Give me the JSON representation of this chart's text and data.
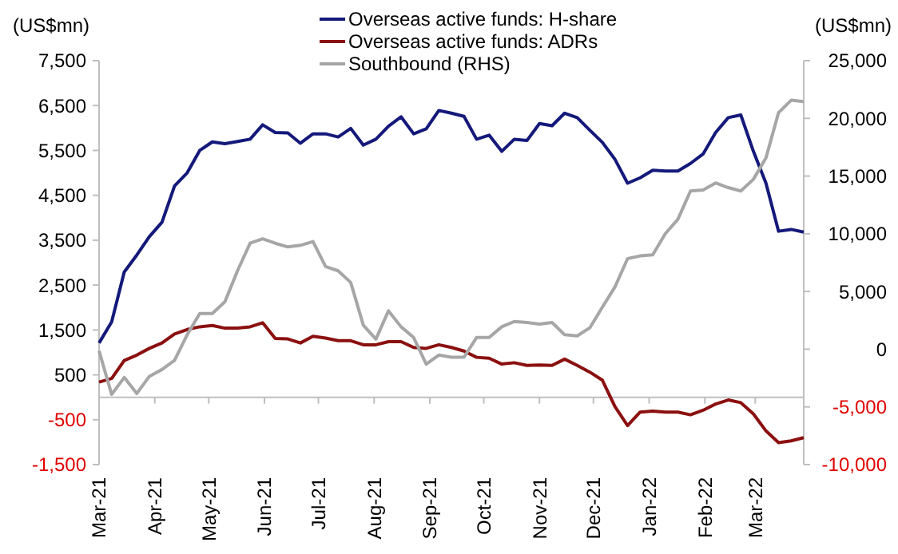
{
  "chart_data": {
    "type": "line",
    "ylabel": "(US$mn)",
    "y2label": "(US$mn)",
    "x": [
      "2021-03-01",
      "2021-03-08",
      "2021-03-15",
      "2021-03-22",
      "2021-03-29",
      "2021-04-05",
      "2021-04-12",
      "2021-04-19",
      "2021-04-26",
      "2021-05-03",
      "2021-05-10",
      "2021-05-17",
      "2021-05-24",
      "2021-05-31",
      "2021-06-07",
      "2021-06-14",
      "2021-06-21",
      "2021-06-28",
      "2021-07-05",
      "2021-07-12",
      "2021-07-19",
      "2021-07-26",
      "2021-08-02",
      "2021-08-09",
      "2021-08-16",
      "2021-08-23",
      "2021-08-30",
      "2021-09-06",
      "2021-09-13",
      "2021-09-20",
      "2021-09-27",
      "2021-10-04",
      "2021-10-11",
      "2021-10-18",
      "2021-10-25",
      "2021-11-01",
      "2021-11-08",
      "2021-11-15",
      "2021-11-22",
      "2021-11-29",
      "2021-12-06",
      "2021-12-13",
      "2021-12-20",
      "2021-12-27",
      "2022-01-03",
      "2022-01-10",
      "2022-01-17",
      "2022-01-24",
      "2022-01-31",
      "2022-02-07",
      "2022-02-14",
      "2022-02-21",
      "2022-02-28",
      "2022-03-07",
      "2022-03-14",
      "2022-03-21",
      "2022-03-28"
    ],
    "series": [
      {
        "name": "Overseas active funds: H-share",
        "color": "#14197a",
        "values": [
          1210,
          1680,
          2790,
          3170,
          3580,
          3900,
          4710,
          5000,
          5500,
          5690,
          5650,
          5700,
          5750,
          6070,
          5900,
          5890,
          5660,
          5870,
          5870,
          5800,
          5990,
          5620,
          5750,
          6040,
          6250,
          5870,
          5980,
          6390,
          6330,
          6260,
          5750,
          5840,
          5480,
          5750,
          5720,
          6100,
          6050,
          6330,
          6230,
          5950,
          5680,
          5300,
          4770,
          4890,
          5060,
          5040,
          5040,
          5210,
          5420,
          5900,
          6230,
          6290,
          5480,
          4770,
          3700,
          3740,
          3680
        ]
      },
      {
        "name": "Overseas active funds: ADRs",
        "color": "#8b1010",
        "values": [
          340,
          420,
          820,
          940,
          1090,
          1210,
          1410,
          1510,
          1570,
          1600,
          1540,
          1540,
          1570,
          1660,
          1310,
          1300,
          1210,
          1360,
          1320,
          1260,
          1260,
          1170,
          1170,
          1240,
          1240,
          1110,
          1090,
          1170,
          1110,
          1030,
          890,
          870,
          740,
          770,
          710,
          720,
          710,
          850,
          710,
          560,
          380,
          -210,
          -630,
          -330,
          -310,
          -330,
          -330,
          -390,
          -290,
          -150,
          -60,
          -120,
          -370,
          -750,
          -1010,
          -970,
          -900
        ]
      },
      {
        "name": "Southbound (RHS)",
        "color": "#a6a6a6",
        "axis": "y2",
        "values": [
          -140,
          -3920,
          -2450,
          -3840,
          -2350,
          -1760,
          -970,
          1250,
          3090,
          3090,
          4110,
          6790,
          9180,
          9560,
          9180,
          8860,
          9000,
          9330,
          7160,
          6790,
          5780,
          2080,
          870,
          3320,
          1940,
          1010,
          -1290,
          -510,
          -700,
          -700,
          1010,
          1010,
          1940,
          2400,
          2310,
          2170,
          2310,
          1250,
          1150,
          1850,
          3640,
          5400,
          7850,
          8080,
          8170,
          10010,
          11260,
          13710,
          13800,
          14400,
          14000,
          13710,
          14720,
          16580,
          20500,
          21570,
          21460
        ]
      }
    ],
    "xlim": [
      "2021-03-01",
      "2022-03-28"
    ],
    "xticks": [
      {
        "value": "2021-03-01",
        "label": "Mar-21"
      },
      {
        "value": "2021-04-01",
        "label": "Apr-21"
      },
      {
        "value": "2021-05-01",
        "label": "May-21"
      },
      {
        "value": "2021-06-01",
        "label": "Jun-21"
      },
      {
        "value": "2021-07-01",
        "label": "Jul-21"
      },
      {
        "value": "2021-08-01",
        "label": "Aug-21"
      },
      {
        "value": "2021-09-01",
        "label": "Sep-21"
      },
      {
        "value": "2021-10-01",
        "label": "Oct-21"
      },
      {
        "value": "2021-11-01",
        "label": "Nov-21"
      },
      {
        "value": "2021-12-01",
        "label": "Dec-21"
      },
      {
        "value": "2022-01-01",
        "label": "Jan-22"
      },
      {
        "value": "2022-02-01",
        "label": "Feb-22"
      },
      {
        "value": "2022-03-01",
        "label": "Mar-22"
      }
    ],
    "ylim": [
      -1500,
      7500
    ],
    "yticks": [
      {
        "value": -1500,
        "label": "-1,500"
      },
      {
        "value": -500,
        "label": "-500"
      },
      {
        "value": 500,
        "label": "500"
      },
      {
        "value": 1500,
        "label": "1,500"
      },
      {
        "value": 2500,
        "label": "2,500"
      },
      {
        "value": 3500,
        "label": "3,500"
      },
      {
        "value": 4500,
        "label": "4,500"
      },
      {
        "value": 5500,
        "label": "5,500"
      },
      {
        "value": 6500,
        "label": "6,500"
      },
      {
        "value": 7500,
        "label": "7,500"
      }
    ],
    "y2lim": [
      -10000,
      25000
    ],
    "y2ticks": [
      {
        "value": -10000,
        "label": "-10,000"
      },
      {
        "value": -5000,
        "label": "-5,000"
      },
      {
        "value": 0,
        "label": "0"
      },
      {
        "value": 5000,
        "label": "5,000"
      },
      {
        "value": 10000,
        "label": "10,000"
      },
      {
        "value": 15000,
        "label": "15,000"
      },
      {
        "value": 20000,
        "label": "20,000"
      },
      {
        "value": 25000,
        "label": "25,000"
      }
    ],
    "grid": false,
    "legend": "top",
    "marker": "none",
    "line_style": "solid"
  }
}
